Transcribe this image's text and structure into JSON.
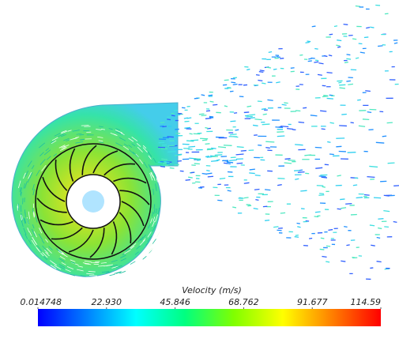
{
  "colorbar": {
    "title": "Velocity (m/s)",
    "range": [
      0.014748,
      114.59
    ],
    "ticks": [
      0.014748,
      {
        "value": 22.93,
        "label": "22.930"
      },
      45.846,
      68.762,
      91.677,
      114.59
    ],
    "colors": [
      "#0000ff",
      "#0080ff",
      "#00ffff",
      "#00ff80",
      "#80ff00",
      "#ffff00",
      "#ff8000",
      "#ff0000"
    ]
  }
}
